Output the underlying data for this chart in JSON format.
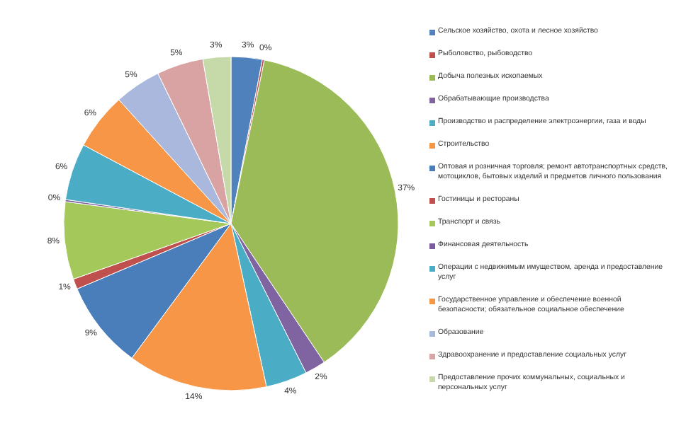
{
  "chart_data": {
    "type": "pie",
    "categories": [
      "Сельское хозяйство, охота и лесное хозяйство",
      "Рыболовство, рыбоводство",
      "Добыча полезных ископаемых",
      "Обрабатывающие производства",
      "Производство и распределение электроэнергии, газа и воды",
      "Строительство",
      "Оптовая  и розничная торговля; ремонт автотранспортных  средств, мотоциклов, бытовых изделий и предметов личного пользования",
      "Гостиницы и рестораны",
      "Транспорт и связь",
      "Финансовая деятельность",
      "Операции с недвижимым имуществом, аренда и предоставление услуг",
      "Государственное управление и обеспечение военной безопасности; обязательное социальное обеспечение",
      "Образование",
      "Здравоохранение и предоставление социальных услуг",
      "Предоставление прочих коммунальных, социальных и персональных услуг"
    ],
    "values": [
      3,
      0.2,
      37.4,
      2,
      4,
      13.5,
      8.5,
      1,
      7.5,
      0.2,
      5.5,
      5.5,
      4.5,
      4.5,
      2.7
    ],
    "value_labels": [
      "3%",
      "0%",
      "37%",
      "2%",
      "4%",
      "14%",
      "9%",
      "1%",
      "8%",
      "0%",
      "6%",
      "6%",
      "5%",
      "5%",
      "3%"
    ],
    "colors": [
      "#4f81bd",
      "#c0504d",
      "#9bbb59",
      "#8064a2",
      "#4bacc6",
      "#f79646",
      "#4a7ebb",
      "#c0504d",
      "#a5c85a",
      "#7a5c9e",
      "#4bacc6",
      "#f79646",
      "#a9b8dc",
      "#d9a3a3",
      "#c6d9a8"
    ],
    "legend": "right"
  }
}
